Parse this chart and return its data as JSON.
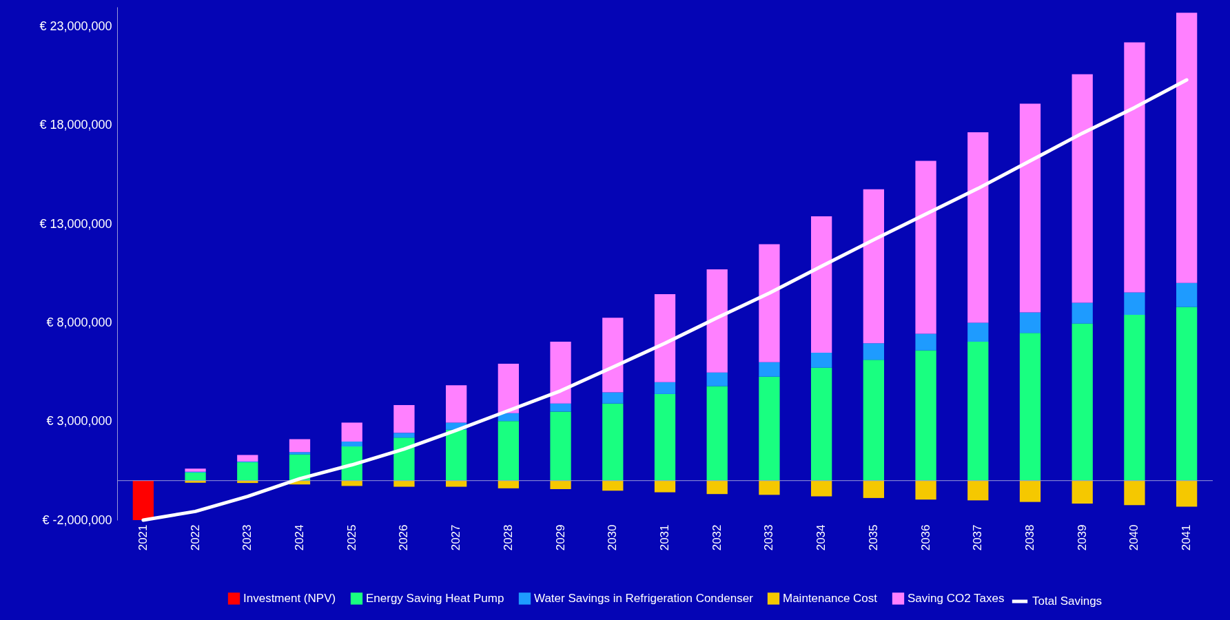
{
  "chart_data": {
    "type": "bar",
    "stacked": true,
    "categories": [
      "2021",
      "2022",
      "2023",
      "2024",
      "2025",
      "2026",
      "2027",
      "2028",
      "2029",
      "2030",
      "2031",
      "2032",
      "2033",
      "2034",
      "2035",
      "2036",
      "2037",
      "2038",
      "2039",
      "2040",
      "2041"
    ],
    "series": [
      {
        "name": "Investment (NPV)",
        "color": "#ff0000",
        "values": [
          -2000000,
          null,
          null,
          null,
          null,
          null,
          null,
          null,
          null,
          null,
          null,
          null,
          null,
          null,
          null,
          null,
          null,
          null,
          null,
          null,
          null
        ]
      },
      {
        "name": "Energy Saving Heat Pump",
        "color": "#19ff80",
        "values": [
          null,
          410000,
          930000,
          1330000,
          1730000,
          2180000,
          2580000,
          3020000,
          3500000,
          3910000,
          4390000,
          4790000,
          5270000,
          5720000,
          6120000,
          6600000,
          7040000,
          7480000,
          7960000,
          8400000,
          8800000
        ]
      },
      {
        "name": "Water Savings in Refrigeration Condenser",
        "color": "#1e9bff",
        "values": [
          null,
          40000,
          40000,
          120000,
          250000,
          240000,
          360000,
          400000,
          410000,
          560000,
          600000,
          690000,
          730000,
          760000,
          840000,
          840000,
          960000,
          1040000,
          1050000,
          1130000,
          1210000
        ]
      },
      {
        "name": "Maintenance Cost",
        "color": "#f5c800",
        "values": [
          null,
          -110000,
          -120000,
          -190000,
          -270000,
          -310000,
          -310000,
          -390000,
          -430000,
          -510000,
          -590000,
          -680000,
          -720000,
          -800000,
          -880000,
          -960000,
          -1000000,
          -1080000,
          -1160000,
          -1240000,
          -1320000
        ]
      },
      {
        "name": "Saving CO2 Taxes",
        "color": "#ff80ff",
        "values": [
          null,
          160000,
          330000,
          650000,
          960000,
          1410000,
          1890000,
          2500000,
          3130000,
          3780000,
          4460000,
          5220000,
          5980000,
          6910000,
          7800000,
          8760000,
          9650000,
          10580000,
          11580000,
          12670000,
          13690000
        ]
      },
      {
        "name": "Total Savings",
        "type": "line",
        "color": "#ffffff",
        "values": [
          -2000000,
          -1560000,
          -800000,
          100000,
          800000,
          1600000,
          2550000,
          3550000,
          4550000,
          5750000,
          6960000,
          8250000,
          9500000,
          10860000,
          12200000,
          13500000,
          14800000,
          16200000,
          17600000,
          18900000,
          20300000
        ]
      }
    ],
    "ylim": [
      -2000000,
      24000000
    ],
    "yticks": [
      {
        "value": -2000000,
        "label": "€ -2,000,000"
      },
      {
        "value": 3000000,
        "label": "€ 3,000,000"
      },
      {
        "value": 8000000,
        "label": "€ 8,000,000"
      },
      {
        "value": 13000000,
        "label": "€ 13,000,000"
      },
      {
        "value": 18000000,
        "label": "€ 18,000,000"
      },
      {
        "value": 23000000,
        "label": "€ 23,000,000"
      }
    ],
    "ref_lines": [
      {
        "axis": "y",
        "value": 0,
        "color": "#9a9ad8"
      }
    ],
    "legend": "bottom"
  }
}
